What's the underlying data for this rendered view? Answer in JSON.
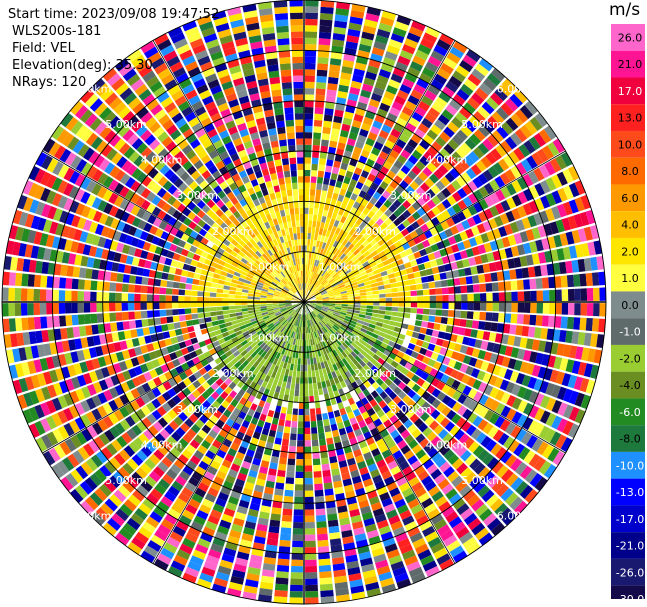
{
  "header": {
    "start_time": "Start time: 2023/09/08 19:47:52",
    "site": "WLS200s-181",
    "field": "Field: VEL",
    "elevation": "Elevation(deg): 35.30",
    "nrays": "NRays: 120"
  },
  "colorbar": {
    "unit": "m/s",
    "ticks": [
      "26.0",
      "21.0",
      "17.0",
      "13.0",
      "10.0",
      "8.0",
      "6.0",
      "4.0",
      "2.0",
      "1.0",
      "0.0",
      "-1.0",
      "-2.0",
      "-4.0",
      "-6.0",
      "-8.0",
      "-10.0",
      "-13.0",
      "-17.0",
      "-21.0",
      "-26.0",
      "-30.0"
    ],
    "colors": [
      "#ff66cc",
      "#ff1493",
      "#f0003c",
      "#ff2020",
      "#ff4a1c",
      "#ff6a00",
      "#ff9900",
      "#ffbf00",
      "#ffe600",
      "#ffff40",
      "#7f8c8d",
      "#5f6a6a",
      "#9acd32",
      "#6b8e23",
      "#228b22",
      "#1e7a3c",
      "#1e90ff",
      "#0000ff",
      "#0000cd",
      "#00008b",
      "#191970",
      "#140a4a"
    ]
  },
  "rings": {
    "labels": [
      "1.00km",
      "2.00km",
      "3.00km",
      "4.00km",
      "5.00km",
      "6.00km"
    ]
  },
  "chart_data": {
    "type": "heatmap",
    "projection": "polar PPI",
    "field": "VEL",
    "units": "m/s",
    "nrays": 120,
    "range_rings_km": [
      1,
      2,
      3,
      4,
      5,
      6
    ],
    "color_levels": [
      26.0,
      21.0,
      17.0,
      13.0,
      10.0,
      8.0,
      6.0,
      4.0,
      2.0,
      1.0,
      0.0,
      -1.0,
      -2.0,
      -4.0,
      -6.0,
      -8.0,
      -10.0,
      -13.0,
      -17.0,
      -21.0,
      -26.0,
      -30.0
    ]
  }
}
